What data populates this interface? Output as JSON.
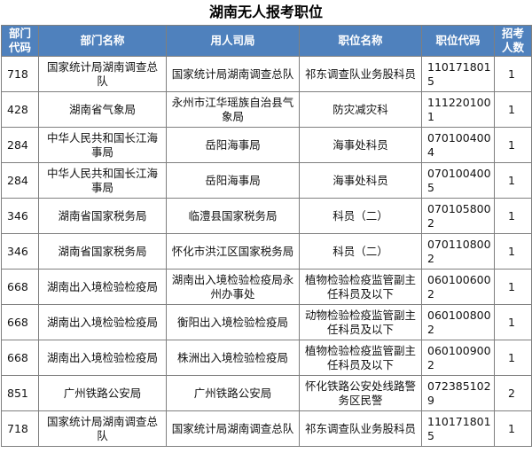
{
  "title": "湖南无人报考职位",
  "header": {
    "columns": [
      "部门代码",
      "部门名称",
      "用人司局",
      "职位名称",
      "职位代码",
      "招考人数"
    ]
  },
  "table": {
    "rows": [
      [
        "718",
        "国家统计局湖南调查总队",
        "国家统计局湖南调查总队",
        "祁东调查队业务股科员",
        "1101718015",
        "1"
      ],
      [
        "428",
        "湖南省气象局",
        "永州市江华瑶族自治县气象局",
        "防灾减灾科",
        "1112201001",
        "1"
      ],
      [
        "284",
        "中华人民共和国长江海事局",
        "岳阳海事局",
        "海事处科员",
        "0701004004",
        "1"
      ],
      [
        "284",
        "中华人民共和国长江海事局",
        "岳阳海事局",
        "海事处科员",
        "0701004005",
        "1"
      ],
      [
        "346",
        "湖南省国家税务局",
        "临澧县国家税务局",
        "科员（二）",
        "0701058002",
        "1"
      ],
      [
        "346",
        "湖南省国家税务局",
        "怀化市洪江区国家税务局",
        "科员（二）",
        "0701108002",
        "1"
      ],
      [
        "668",
        "湖南出入境检验检疫局",
        "湖南出入境检验检疫局永州办事处",
        "植物检验检疫监管副主任科员及以下",
        "0601006002",
        "1"
      ],
      [
        "668",
        "湖南出入境检验检疫局",
        "衡阳出入境检验检疫局",
        "动物检验检疫监管副主任科员及以下",
        "0601008002",
        "1"
      ],
      [
        "668",
        "湖南出入境检验检疫局",
        "株洲出入境检验检疫局",
        "植物检验检疫监管副主任科员及以下",
        "0601009002",
        "1"
      ],
      [
        "851",
        "广州铁路公安局",
        "广州铁路公安局",
        "怀化铁路公安处线路警务区民警",
        "0723851029",
        "2"
      ],
      [
        "718",
        "国家统计局湖南调查总队",
        "国家统计局湖南调查总队",
        "祁东调查队业务股科员",
        "1101718015",
        "1"
      ]
    ]
  }
}
